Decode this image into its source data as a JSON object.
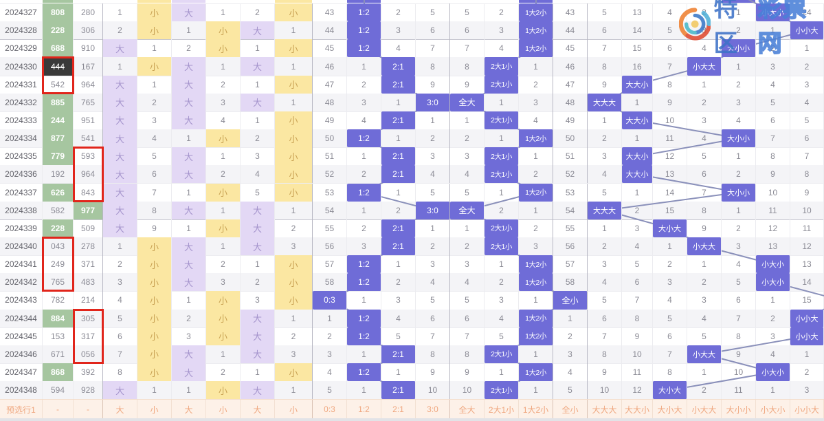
{
  "watermark": {
    "brand_solid": "特区",
    "brand_outline": "彩票网"
  },
  "colors": {
    "badge": "#6f6cd7",
    "big_bg": "#e3d8f5",
    "big_text": "#a493cc",
    "small_bg": "#fbe7a2",
    "small_text": "#c9a254",
    "green_bg": "#a6c6a0",
    "dark_bg": "#3a3a3a",
    "red_box": "#e1251b",
    "line": "#8a90ba",
    "footer_bg": "#fdf1e8",
    "footer_text": "#efa77f"
  },
  "footer": {
    "row_label": "预选行1",
    "dash": "-",
    "labels": [
      "大",
      "小",
      "大",
      "小",
      "大",
      "小",
      "0:3",
      "1:2",
      "2:1",
      "3:0",
      "全大",
      "2大1小",
      "1大2小",
      "全小",
      "大大大",
      "大大小",
      "大小大",
      "小大大",
      "大小小",
      "小大小",
      "小小大"
    ]
  },
  "column_names": [
    "hundreds-big",
    "hundreds-small",
    "tens-big",
    "tens-small",
    "units-big",
    "units-small",
    "ratio-0-3",
    "ratio-1-2",
    "ratio-2-1",
    "ratio-3-0",
    "all-big",
    "2big-1small",
    "1big-2small",
    "all-small",
    "pattern-bbb",
    "pattern-bbs",
    "pattern-bsb",
    "pattern-sbb",
    "pattern-bss",
    "pattern-sbs",
    "pattern-ssb"
  ],
  "rows": [
    {
      "p": "2024327",
      "v1": "808",
      "s1": "green",
      "v2": "280",
      "s2": "",
      "a": [
        "1",
        "X",
        "D",
        "1",
        "2",
        "X",
        "43",
        "B:1:2",
        "2",
        "5",
        "5",
        "2",
        "B:1大2小",
        "43",
        "5",
        "13",
        "4",
        "2",
        "1",
        "B:小大小",
        "24"
      ]
    },
    {
      "p": "2024328",
      "v1": "228",
      "s1": "green",
      "v2": "306",
      "s2": "",
      "a": [
        "2",
        "X",
        "1",
        "X",
        "D",
        "1",
        "44",
        "B:1:2",
        "3",
        "6",
        "6",
        "3",
        "B:1大2小",
        "44",
        "6",
        "14",
        "5",
        "3",
        "2",
        "1",
        "B:小小大"
      ]
    },
    {
      "p": "2024329",
      "v1": "688",
      "s1": "green",
      "v2": "910",
      "s2": "",
      "a": [
        "D",
        "1",
        "2",
        "X",
        "1",
        "X",
        "45",
        "B:1:2",
        "4",
        "7",
        "7",
        "4",
        "B:1大2小",
        "45",
        "7",
        "15",
        "6",
        "4",
        "B:大小小",
        "2",
        "1"
      ]
    },
    {
      "p": "2024330",
      "v1": "444",
      "s1": "dark",
      "v2": "167",
      "s2": "",
      "a": [
        "1",
        "X",
        "D",
        "1",
        "D",
        "1",
        "46",
        "1",
        "B:2:1",
        "8",
        "8",
        "B:2大1小",
        "1",
        "46",
        "8",
        "16",
        "7",
        "B:小大大",
        "1",
        "3",
        "2"
      ]
    },
    {
      "p": "2024331",
      "v1": "542",
      "s1": "",
      "v2": "964",
      "s2": "",
      "a": [
        "D",
        "1",
        "D",
        "2",
        "1",
        "X",
        "47",
        "2",
        "B:2:1",
        "9",
        "9",
        "B:2大1小",
        "2",
        "47",
        "9",
        "B:大大小",
        "8",
        "1",
        "2",
        "4",
        "3"
      ]
    },
    {
      "p": "2024332",
      "v1": "885",
      "s1": "green",
      "v2": "765",
      "s2": "",
      "a": [
        "D",
        "2",
        "D",
        "3",
        "D",
        "1",
        "48",
        "3",
        "1",
        "B:3:0",
        "B:全大",
        "1",
        "3",
        "48",
        "B:大大大",
        "1",
        "9",
        "2",
        "3",
        "5",
        "4"
      ]
    },
    {
      "p": "2024333",
      "v1": "244",
      "s1": "green",
      "v2": "951",
      "s2": "",
      "a": [
        "D",
        "3",
        "D",
        "4",
        "1",
        "X",
        "49",
        "4",
        "B:2:1",
        "1",
        "1",
        "B:2大1小",
        "4",
        "49",
        "1",
        "B:大大小",
        "10",
        "3",
        "4",
        "6",
        "5"
      ]
    },
    {
      "p": "2024334",
      "v1": "877",
      "s1": "green",
      "v2": "541",
      "s2": "",
      "a": [
        "D",
        "4",
        "1",
        "X",
        "2",
        "X",
        "50",
        "B:1:2",
        "1",
        "2",
        "2",
        "1",
        "B:1大2小",
        "50",
        "2",
        "1",
        "11",
        "4",
        "B:大小小",
        "7",
        "6"
      ]
    },
    {
      "p": "2024335",
      "v1": "779",
      "s1": "green",
      "v2": "593",
      "s2": "",
      "a": [
        "D",
        "5",
        "D",
        "1",
        "3",
        "X",
        "51",
        "1",
        "B:2:1",
        "3",
        "3",
        "B:2大1小",
        "1",
        "51",
        "3",
        "B:大大小",
        "12",
        "5",
        "1",
        "8",
        "7"
      ]
    },
    {
      "p": "2024336",
      "v1": "192",
      "s1": "",
      "v2": "964",
      "s2": "",
      "a": [
        "D",
        "6",
        "D",
        "2",
        "4",
        "X",
        "52",
        "2",
        "B:2:1",
        "4",
        "4",
        "B:2大1小",
        "2",
        "52",
        "4",
        "B:大大小",
        "13",
        "6",
        "2",
        "9",
        "8"
      ]
    },
    {
      "p": "2024337",
      "v1": "626",
      "s1": "green",
      "v2": "843",
      "s2": "",
      "a": [
        "D",
        "7",
        "1",
        "X",
        "5",
        "X",
        "53",
        "B:1:2",
        "1",
        "5",
        "5",
        "1",
        "B:1大2小",
        "53",
        "5",
        "1",
        "14",
        "7",
        "B:大小小",
        "10",
        "9"
      ]
    },
    {
      "p": "2024338",
      "v1": "582",
      "s1": "",
      "v2": "977",
      "s2": "green",
      "a": [
        "D",
        "8",
        "D",
        "1",
        "D",
        "1",
        "54",
        "1",
        "2",
        "B:3:0",
        "B:全大",
        "2",
        "1",
        "54",
        "B:大大大",
        "2",
        "15",
        "8",
        "1",
        "11",
        "10"
      ]
    },
    {
      "p": "2024339",
      "v1": "228",
      "s1": "green",
      "v2": "509",
      "s2": "",
      "a": [
        "D",
        "9",
        "1",
        "X",
        "D",
        "2",
        "55",
        "2",
        "B:2:1",
        "1",
        "1",
        "B:2大1小",
        "2",
        "55",
        "1",
        "3",
        "B:大小大",
        "9",
        "2",
        "12",
        "11"
      ]
    },
    {
      "p": "2024340",
      "v1": "043",
      "s1": "",
      "v2": "278",
      "s2": "",
      "a": [
        "1",
        "X",
        "D",
        "1",
        "D",
        "3",
        "56",
        "3",
        "B:2:1",
        "2",
        "2",
        "B:2大1小",
        "3",
        "56",
        "2",
        "4",
        "1",
        "B:小大大",
        "3",
        "13",
        "12"
      ]
    },
    {
      "p": "2024341",
      "v1": "249",
      "s1": "",
      "v2": "371",
      "s2": "",
      "a": [
        "2",
        "X",
        "D",
        "2",
        "1",
        "X",
        "57",
        "B:1:2",
        "1",
        "3",
        "3",
        "1",
        "B:1大2小",
        "57",
        "3",
        "5",
        "2",
        "1",
        "4",
        "B:小大小",
        "13"
      ]
    },
    {
      "p": "2024342",
      "v1": "765",
      "s1": "",
      "v2": "483",
      "s2": "",
      "a": [
        "3",
        "X",
        "D",
        "3",
        "2",
        "X",
        "58",
        "B:1:2",
        "2",
        "4",
        "4",
        "2",
        "B:1大2小",
        "58",
        "4",
        "6",
        "3",
        "2",
        "5",
        "B:小大小",
        "14"
      ]
    },
    {
      "p": "2024343",
      "v1": "782",
      "s1": "",
      "v2": "214",
      "s2": "",
      "a": [
        "4",
        "X",
        "1",
        "X",
        "3",
        "X",
        "B:0:3",
        "1",
        "3",
        "5",
        "5",
        "3",
        "1",
        "B:全小",
        "5",
        "7",
        "4",
        "3",
        "6",
        "1",
        "15"
      ]
    },
    {
      "p": "2024344",
      "v1": "884",
      "s1": "green",
      "v2": "305",
      "s2": "",
      "a": [
        "5",
        "X",
        "2",
        "X",
        "D",
        "1",
        "1",
        "B:1:2",
        "4",
        "6",
        "6",
        "4",
        "B:1大2小",
        "1",
        "6",
        "8",
        "5",
        "4",
        "7",
        "2",
        "B:小小大"
      ]
    },
    {
      "p": "2024345",
      "v1": "153",
      "s1": "",
      "v2": "317",
      "s2": "",
      "a": [
        "6",
        "X",
        "3",
        "X",
        "D",
        "2",
        "2",
        "B:1:2",
        "5",
        "7",
        "7",
        "5",
        "B:1大2小",
        "2",
        "7",
        "9",
        "6",
        "5",
        "8",
        "3",
        "B:小小大"
      ]
    },
    {
      "p": "2024346",
      "v1": "671",
      "s1": "",
      "v2": "056",
      "s2": "",
      "a": [
        "7",
        "X",
        "D",
        "1",
        "D",
        "3",
        "3",
        "1",
        "B:2:1",
        "8",
        "8",
        "B:2大1小",
        "1",
        "3",
        "8",
        "10",
        "7",
        "B:小大大",
        "9",
        "4",
        "1"
      ]
    },
    {
      "p": "2024347",
      "v1": "868",
      "s1": "green",
      "v2": "392",
      "s2": "",
      "a": [
        "8",
        "X",
        "D",
        "2",
        "1",
        "X",
        "4",
        "B:1:2",
        "1",
        "9",
        "9",
        "1",
        "B:1大2小",
        "4",
        "9",
        "11",
        "8",
        "1",
        "10",
        "B:小大小",
        "2"
      ]
    },
    {
      "p": "2024348",
      "v1": "594",
      "s1": "",
      "v2": "928",
      "s2": "",
      "a": [
        "D",
        "1",
        "1",
        "X",
        "D",
        "1",
        "5",
        "1",
        "B:2:1",
        "10",
        "10",
        "B:2大1小",
        "1",
        "5",
        "10",
        "12",
        "B:大小大",
        "2",
        "11",
        "1",
        "3"
      ]
    }
  ],
  "red_boxes": [
    {
      "col": 1,
      "from": 3,
      "to": 4
    },
    {
      "col": 2,
      "from": 8,
      "to": 10
    },
    {
      "col": 1,
      "from": 13,
      "to": 15
    },
    {
      "col": 2,
      "from": 17,
      "to": 19
    }
  ],
  "top_sliver_cells": [
    {
      "col": 1,
      "c": "green"
    },
    {
      "col": 4,
      "c": "small"
    },
    {
      "col": 5,
      "c": "big"
    },
    {
      "col": 8,
      "c": "small"
    },
    {
      "col": 10,
      "c": "badge"
    },
    {
      "col": 15,
      "c": "badge"
    },
    {
      "col": 21,
      "c": "badge"
    }
  ],
  "trend_lines": {
    "ratio": [
      1,
      1,
      1,
      1,
      2,
      2,
      3,
      2,
      1,
      2,
      2,
      1,
      3,
      2,
      2,
      1,
      1,
      0,
      1,
      1,
      2,
      1,
      2
    ],
    "group": [
      2,
      2,
      2,
      2,
      1,
      1,
      0,
      1,
      2,
      1,
      1,
      2,
      0,
      1,
      1,
      2,
      2,
      3,
      2,
      2,
      1,
      2,
      1
    ],
    "pattern": [
      4,
      5,
      6,
      4,
      3,
      1,
      0,
      1,
      4,
      1,
      1,
      4,
      0,
      2,
      3,
      5,
      5,
      7,
      6,
      6,
      3,
      5,
      2
    ]
  }
}
